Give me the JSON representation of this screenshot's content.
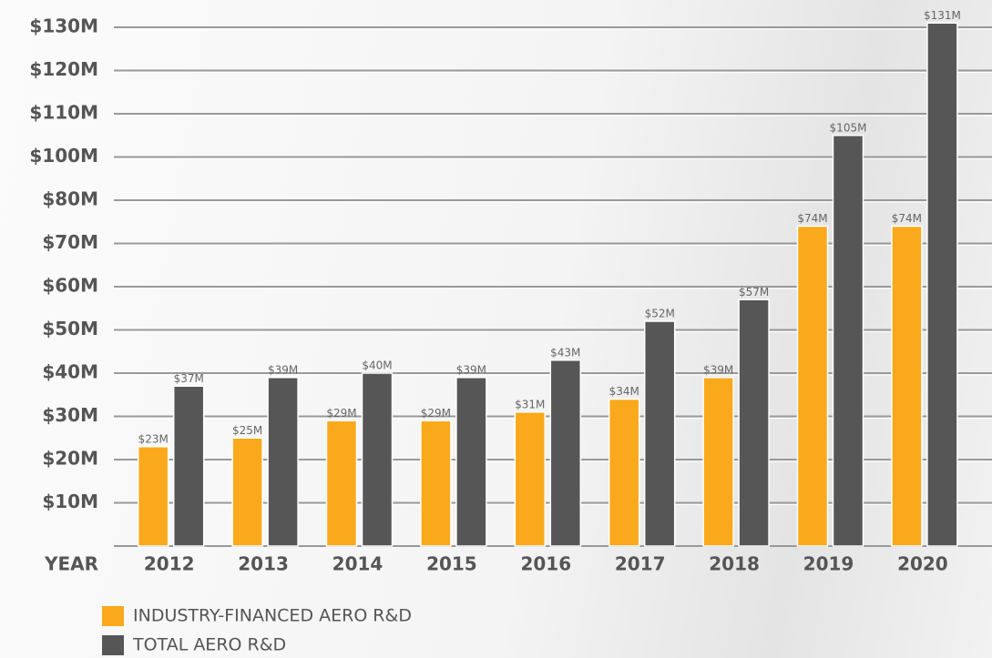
{
  "chart_data": {
    "type": "bar",
    "x_label": "YEAR",
    "categories": [
      "2012",
      "2013",
      "2014",
      "2015",
      "2016",
      "2017",
      "2018",
      "2019",
      "2020"
    ],
    "series": [
      {
        "name": "INDUSTRY-FINANCED AERO R&D",
        "color": "#f9a91b",
        "values": [
          23,
          25,
          29,
          29,
          31,
          34,
          39,
          74,
          74
        ],
        "value_labels": [
          "$23M",
          "$25M",
          "$29M",
          "$29M",
          "$31M",
          "$34M",
          "$39M",
          "$74M",
          "$74M"
        ]
      },
      {
        "name": "TOTAL AERO R&D",
        "color": "#565656",
        "values": [
          37,
          39,
          40,
          39,
          43,
          52,
          57,
          105,
          131
        ],
        "value_labels": [
          "$37M",
          "$39M",
          "$40M",
          "$39M",
          "$43M",
          "$52M",
          "$57M",
          "$105M",
          "$131M"
        ]
      }
    ],
    "ylim": [
      0,
      130
    ],
    "yticks": [
      {
        "value": 10,
        "label": "$10M"
      },
      {
        "value": 20,
        "label": "$20M"
      },
      {
        "value": 30,
        "label": "$30M"
      },
      {
        "value": 40,
        "label": "$40M"
      },
      {
        "value": 50,
        "label": "$50M"
      },
      {
        "value": 60,
        "label": "$60M"
      },
      {
        "value": 70,
        "label": "$70M"
      },
      {
        "value": 80,
        "label": "$80M"
      },
      {
        "value": 100,
        "label": "$100M"
      },
      {
        "value": 110,
        "label": "$110M"
      },
      {
        "value": 120,
        "label": "$120M"
      },
      {
        "value": 130,
        "label": "$130M"
      }
    ],
    "grid": true,
    "legend": "bottom-left"
  }
}
